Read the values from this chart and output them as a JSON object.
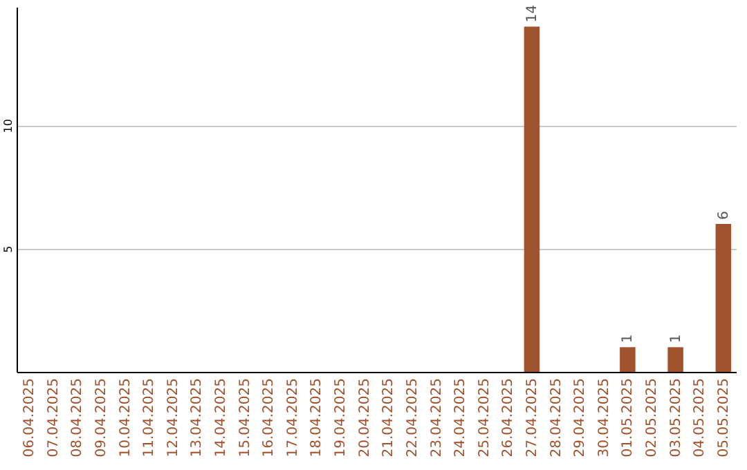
{
  "chart_data": {
    "type": "bar",
    "categories": [
      "06.04.2025",
      "07.04.2025",
      "08.04.2025",
      "09.04.2025",
      "10.04.2025",
      "11.04.2025",
      "12.04.2025",
      "13.04.2025",
      "14.04.2025",
      "15.04.2025",
      "16.04.2025",
      "17.04.2025",
      "18.04.2025",
      "19.04.2025",
      "20.04.2025",
      "21.04.2025",
      "22.04.2025",
      "23.04.2025",
      "24.04.2025",
      "25.04.2025",
      "26.04.2025",
      "27.04.2025",
      "28.04.2025",
      "29.04.2025",
      "30.04.2025",
      "01.05.2025",
      "02.05.2025",
      "03.05.2025",
      "04.05.2025",
      "05.05.2025"
    ],
    "values": [
      0,
      0,
      0,
      0,
      0,
      0,
      0,
      0,
      0,
      0,
      0,
      0,
      0,
      0,
      0,
      0,
      0,
      0,
      0,
      0,
      0,
      14,
      0,
      0,
      0,
      1,
      0,
      1,
      0,
      6
    ],
    "value_labels": [
      null,
      null,
      null,
      null,
      null,
      null,
      null,
      null,
      null,
      null,
      null,
      null,
      null,
      null,
      null,
      null,
      null,
      null,
      null,
      null,
      null,
      "14",
      null,
      null,
      null,
      "1",
      null,
      "1",
      null,
      "6"
    ],
    "color": "#a0522d",
    "ylim": [
      0,
      14.8
    ],
    "yticks": [
      5,
      10
    ],
    "grid": "y"
  }
}
